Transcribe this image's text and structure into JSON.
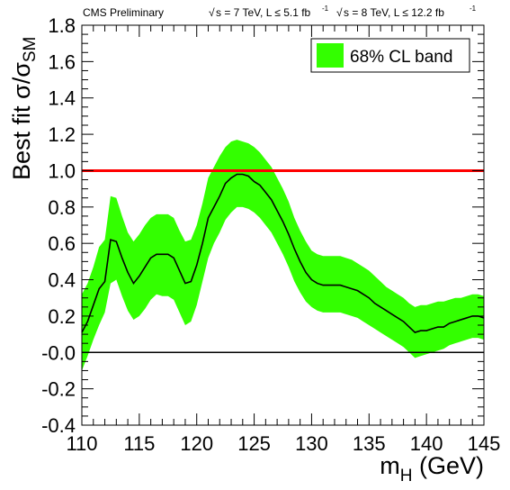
{
  "chart_data": {
    "type": "line",
    "header": {
      "experiment": "CMS Preliminary",
      "lumi_7": "s = 7 TeV, L ≤ 5.1 fb",
      "lumi_7_exp": "-1",
      "lumi_8": "s = 8 TeV, L ≤ 12.2 fb",
      "lumi_8_exp": "-1"
    },
    "xlabel": "m",
    "xlabel_sub": "H",
    "xlabel_unit": "(GeV)",
    "ylabel": "Best fit σ/σ",
    "ylabel_sub": "SM",
    "xlim": [
      110,
      145
    ],
    "ylim": [
      -0.4,
      1.8
    ],
    "xticks": [
      110,
      115,
      120,
      125,
      130,
      135,
      140,
      145
    ],
    "yticks": [
      "-0.4",
      "-0.2",
      "-0.0",
      "0.2",
      "0.4",
      "0.6",
      "0.8",
      "1.0",
      "1.2",
      "1.4",
      "1.6",
      "1.8"
    ],
    "legend": {
      "label": "68% CL band",
      "position": "top-right"
    },
    "colors": {
      "band": "#33ff00",
      "reference": "#ff0000",
      "central": "#000000",
      "zero": "#000000"
    },
    "reference_lines": [
      {
        "y": 1.0,
        "color": "#ff0000"
      },
      {
        "y": 0.0,
        "color": "#000000"
      }
    ],
    "series": [
      {
        "x": [
          110,
          110.5,
          111,
          111.5,
          112,
          112.5,
          113,
          113.5,
          114,
          114.5,
          115,
          115.5,
          116,
          116.5,
          117,
          117.5,
          118,
          118.5,
          119,
          119.5,
          120,
          120.5,
          121,
          121.5,
          122,
          122.5,
          123,
          123.5,
          124,
          124.5,
          125,
          125.5,
          126,
          126.5,
          127,
          127.5,
          128,
          128.5,
          129,
          129.5,
          130,
          130.5,
          131,
          131.5,
          132,
          132.5,
          133,
          133.5,
          134,
          134.5,
          135,
          135.5,
          136,
          136.5,
          137,
          137.5,
          138,
          138.5,
          139,
          139.5,
          140,
          140.5,
          141,
          141.5,
          142,
          142.5,
          143,
          143.5,
          144,
          144.5,
          145
        ],
        "y": [
          0.11,
          0.17,
          0.26,
          0.35,
          0.39,
          0.62,
          0.61,
          0.52,
          0.44,
          0.38,
          0.42,
          0.47,
          0.52,
          0.54,
          0.54,
          0.54,
          0.52,
          0.45,
          0.38,
          0.39,
          0.48,
          0.6,
          0.74,
          0.8,
          0.86,
          0.93,
          0.96,
          0.98,
          0.98,
          0.97,
          0.94,
          0.92,
          0.88,
          0.84,
          0.78,
          0.72,
          0.65,
          0.57,
          0.5,
          0.44,
          0.4,
          0.38,
          0.37,
          0.37,
          0.37,
          0.37,
          0.36,
          0.35,
          0.34,
          0.32,
          0.3,
          0.27,
          0.25,
          0.23,
          0.21,
          0.19,
          0.17,
          0.14,
          0.11,
          0.12,
          0.12,
          0.13,
          0.14,
          0.14,
          0.16,
          0.17,
          0.18,
          0.19,
          0.2,
          0.2,
          0.19
        ],
        "lower": [
          -0.1,
          -0.02,
          0.07,
          0.15,
          0.22,
          0.38,
          0.4,
          0.31,
          0.23,
          0.18,
          0.2,
          0.24,
          0.29,
          0.32,
          0.31,
          0.31,
          0.29,
          0.22,
          0.15,
          0.17,
          0.26,
          0.39,
          0.52,
          0.6,
          0.66,
          0.73,
          0.77,
          0.8,
          0.8,
          0.79,
          0.77,
          0.74,
          0.7,
          0.66,
          0.6,
          0.54,
          0.47,
          0.39,
          0.33,
          0.28,
          0.25,
          0.23,
          0.22,
          0.22,
          0.22,
          0.22,
          0.21,
          0.2,
          0.19,
          0.17,
          0.15,
          0.13,
          0.11,
          0.09,
          0.07,
          0.05,
          0.03,
          0.0,
          -0.03,
          -0.02,
          -0.01,
          0.0,
          0.01,
          0.02,
          0.04,
          0.05,
          0.06,
          0.07,
          0.08,
          0.08,
          0.07
        ],
        "upper": [
          0.32,
          0.38,
          0.47,
          0.58,
          0.62,
          0.86,
          0.85,
          0.75,
          0.66,
          0.61,
          0.65,
          0.7,
          0.74,
          0.76,
          0.76,
          0.76,
          0.74,
          0.67,
          0.61,
          0.62,
          0.7,
          0.82,
          0.96,
          1.02,
          1.08,
          1.13,
          1.16,
          1.17,
          1.16,
          1.15,
          1.13,
          1.1,
          1.06,
          1.02,
          0.96,
          0.9,
          0.83,
          0.74,
          0.67,
          0.61,
          0.56,
          0.54,
          0.53,
          0.53,
          0.53,
          0.53,
          0.52,
          0.51,
          0.49,
          0.47,
          0.45,
          0.42,
          0.39,
          0.36,
          0.34,
          0.32,
          0.3,
          0.27,
          0.25,
          0.26,
          0.26,
          0.27,
          0.28,
          0.28,
          0.29,
          0.3,
          0.3,
          0.31,
          0.32,
          0.32,
          0.31
        ]
      }
    ]
  }
}
